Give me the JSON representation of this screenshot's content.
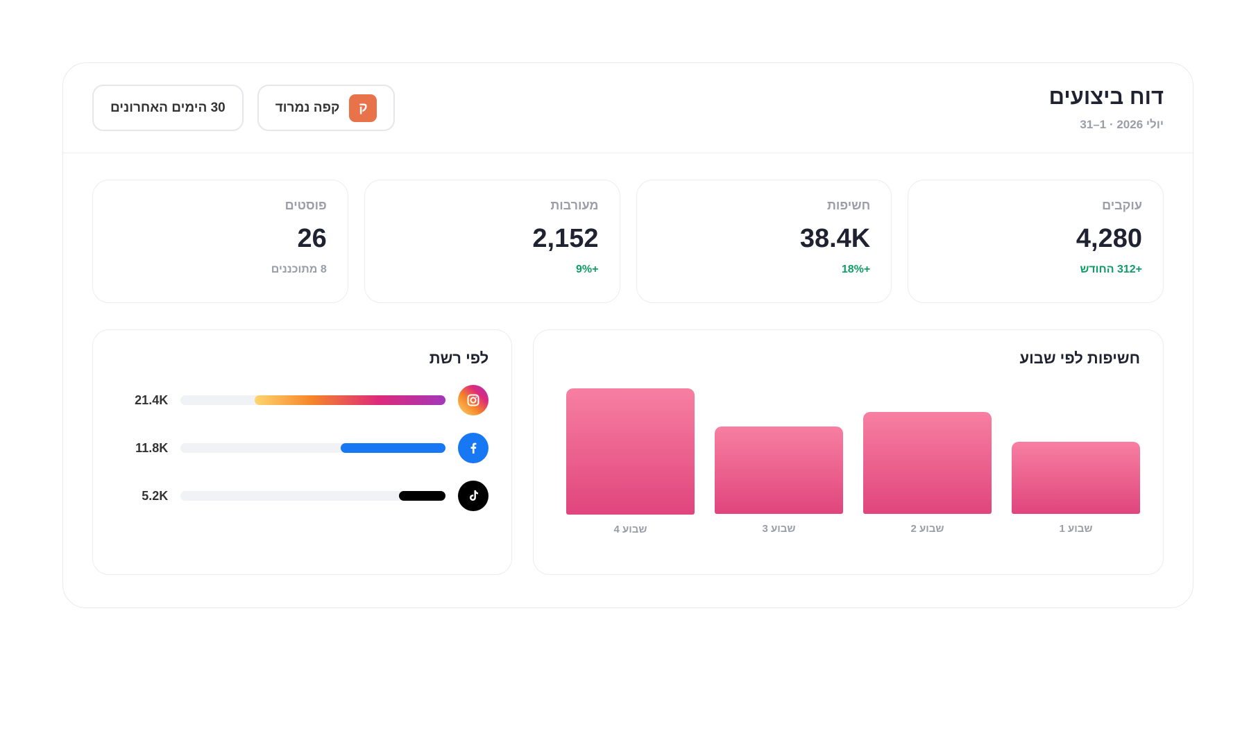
{
  "header": {
    "title": "דוח ביצועים",
    "subtitle": "יולי 2026 · 1–31",
    "account": {
      "initial": "ק",
      "name": "קפה נמרוד"
    },
    "range": "30 הימים האחרונים"
  },
  "kpis": [
    {
      "label": "עוקבים",
      "value": "4,280",
      "delta": "+312 החודש"
    },
    {
      "label": "חשיפות",
      "value": "38.4K",
      "delta": "+18%"
    },
    {
      "label": "מעורבות",
      "value": "2,152",
      "delta": "+9%"
    },
    {
      "label": "פוסטים",
      "value": "26",
      "delta": "8 מתוכננים"
    }
  ],
  "networks": {
    "title": "לפי רשת",
    "values": [
      21.4,
      11.8,
      5.2
    ],
    "value_labels": [
      "21.4K",
      "11.8K",
      "5.2K"
    ]
  },
  "weekly": {
    "title": "חשיפות לפי שבוע",
    "categories": [
      "שבוע 1",
      "שבוע 2",
      "שבוע 3",
      "שבוע 4"
    ],
    "values": [
      7.0,
      9.9,
      8.5,
      13.0
    ]
  }
}
